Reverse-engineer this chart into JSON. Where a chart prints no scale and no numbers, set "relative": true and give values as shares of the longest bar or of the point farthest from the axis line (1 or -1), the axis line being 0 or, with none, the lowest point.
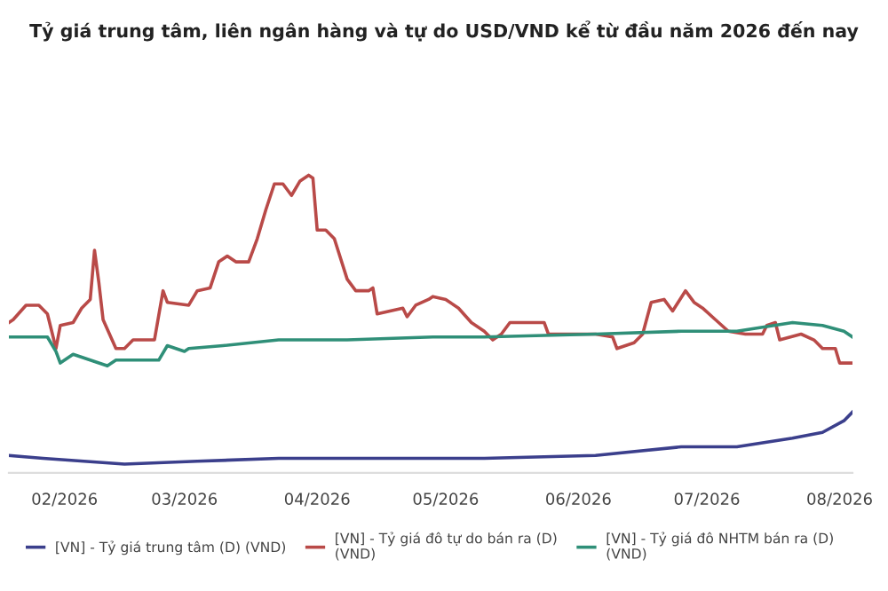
{
  "chart_data": {
    "type": "line",
    "title": "Tỷ giá trung tâm, liên ngân hàng và tự do USD/VND kể từ đầu năm 2026 đến nay",
    "relative": true,
    "legend": "bottom",
    "marker": "none",
    "line_style": "solid",
    "xlim": [
      "2026-01-19",
      "2026-08-04"
    ],
    "xticks": [
      {
        "value": "2026-02-01",
        "label": "02/2026"
      },
      {
        "value": "2026-03-01",
        "label": "03/2026"
      },
      {
        "value": "2026-04-01",
        "label": "04/2026"
      },
      {
        "value": "2026-05-01",
        "label": "05/2026"
      },
      {
        "value": "2026-06-01",
        "label": "06/2026"
      },
      {
        "value": "2026-07-01",
        "label": "07/2026"
      },
      {
        "value": "2026-08-01",
        "label": "08/2026"
      }
    ],
    "series": [
      {
        "name": "[VN] - Tỷ giá trung tâm (D) (VND)",
        "color": "#3b3f8c",
        "x": [
          "2026-01-19",
          "2026-01-27",
          "2026-02-15",
          "2026-03-04",
          "2026-03-23",
          "2026-04-08",
          "2026-04-28",
          "2026-05-10",
          "2026-06-05",
          "2026-06-25",
          "2026-07-08",
          "2026-07-21",
          "2026-07-28",
          "2026-08-02",
          "2026-08-04"
        ],
        "values": [
          0.03,
          0.02,
          0,
          0.01,
          0.02,
          0.02,
          0.02,
          0.02,
          0.03,
          0.06,
          0.06,
          0.09,
          0.11,
          0.15,
          0.18
        ]
      },
      {
        "name": "[VN] - Tỷ giá đô tự do bán ra (D)\n(VND)",
        "color": "#b94a48",
        "x": [
          "2026-01-19",
          "2026-01-20",
          "2026-01-23",
          "2026-01-26",
          "2026-01-28",
          "2026-01-30",
          "2026-01-31",
          "2026-02-03",
          "2026-02-05",
          "2026-02-07",
          "2026-02-08",
          "2026-02-09",
          "2026-02-10",
          "2026-02-13",
          "2026-02-15",
          "2026-02-17",
          "2026-02-22",
          "2026-02-24",
          "2026-02-25",
          "2026-03-02",
          "2026-03-04",
          "2026-03-07",
          "2026-03-09",
          "2026-03-11",
          "2026-03-13",
          "2026-03-16",
          "2026-03-18",
          "2026-03-20",
          "2026-03-22",
          "2026-03-24",
          "2026-03-26",
          "2026-03-28",
          "2026-03-30",
          "2026-03-31",
          "2026-04-01",
          "2026-04-03",
          "2026-04-05",
          "2026-04-08",
          "2026-04-10",
          "2026-04-13",
          "2026-04-14",
          "2026-04-15",
          "2026-04-18",
          "2026-04-21",
          "2026-04-22",
          "2026-04-24",
          "2026-04-27",
          "2026-04-28",
          "2026-05-01",
          "2026-05-04",
          "2026-05-07",
          "2026-05-10",
          "2026-05-12",
          "2026-05-14",
          "2026-05-16",
          "2026-05-19",
          "2026-05-24",
          "2026-05-25",
          "2026-05-31",
          "2026-06-05",
          "2026-06-09",
          "2026-06-10",
          "2026-06-14",
          "2026-06-16",
          "2026-06-18",
          "2026-06-21",
          "2026-06-23",
          "2026-06-26",
          "2026-06-28",
          "2026-06-30",
          "2026-07-03",
          "2026-07-06",
          "2026-07-10",
          "2026-07-14",
          "2026-07-15",
          "2026-07-17",
          "2026-07-18",
          "2026-07-23",
          "2026-07-26",
          "2026-07-28",
          "2026-07-31",
          "2026-08-01",
          "2026-08-04"
        ],
        "values": [
          0.49,
          0.5,
          0.55,
          0.55,
          0.52,
          0.4,
          0.48,
          0.49,
          0.54,
          0.57,
          0.74,
          0.63,
          0.5,
          0.4,
          0.4,
          0.43,
          0.43,
          0.6,
          0.56,
          0.55,
          0.6,
          0.61,
          0.7,
          0.72,
          0.7,
          0.7,
          0.78,
          0.88,
          0.97,
          0.97,
          0.93,
          0.98,
          1.0,
          0.99,
          0.81,
          0.81,
          0.78,
          0.64,
          0.6,
          0.6,
          0.61,
          0.52,
          0.53,
          0.54,
          0.51,
          0.55,
          0.57,
          0.58,
          0.57,
          0.54,
          0.49,
          0.46,
          0.43,
          0.45,
          0.49,
          0.49,
          0.49,
          0.45,
          0.45,
          0.45,
          0.44,
          0.4,
          0.42,
          0.45,
          0.56,
          0.57,
          0.53,
          0.6,
          0.56,
          0.54,
          0.5,
          0.46,
          0.45,
          0.45,
          0.48,
          0.49,
          0.43,
          0.45,
          0.43,
          0.4,
          0.4,
          0.35,
          0.35
        ]
      },
      {
        "name": "[VN] - Tỷ giá đô NHTM bán ra (D)\n(VND)",
        "color": "#2f8f78",
        "x": [
          "2026-01-19",
          "2026-01-28",
          "2026-01-30",
          "2026-01-31",
          "2026-02-03",
          "2026-02-05",
          "2026-02-09",
          "2026-02-11",
          "2026-02-13",
          "2026-02-23",
          "2026-02-25",
          "2026-02-27",
          "2026-03-01",
          "2026-03-02",
          "2026-03-10",
          "2026-03-23",
          "2026-04-08",
          "2026-04-28",
          "2026-05-10",
          "2026-06-05",
          "2026-06-25",
          "2026-07-08",
          "2026-07-21",
          "2026-07-28",
          "2026-08-02",
          "2026-08-04"
        ],
        "values": [
          0.44,
          0.44,
          0.39,
          0.35,
          0.38,
          0.37,
          0.35,
          0.34,
          0.36,
          0.36,
          0.41,
          0.4,
          0.39,
          0.4,
          0.41,
          0.43,
          0.43,
          0.44,
          0.44,
          0.45,
          0.46,
          0.46,
          0.49,
          0.48,
          0.46,
          0.44
        ]
      }
    ]
  }
}
